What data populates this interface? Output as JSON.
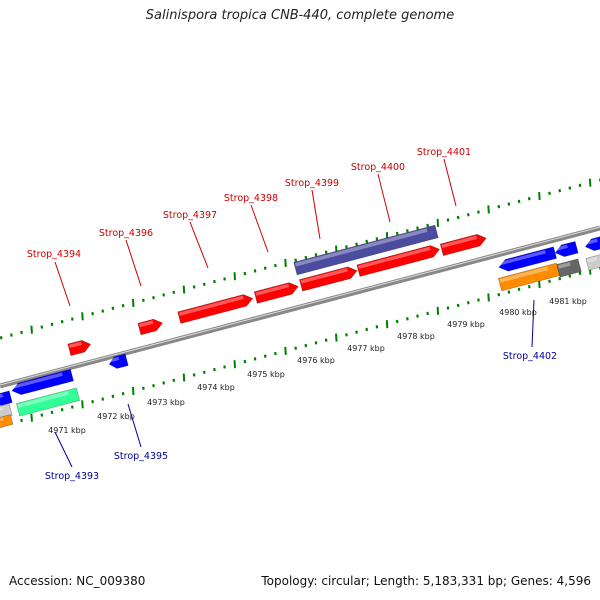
{
  "title": "Salinispora tropica CNB-440, complete genome",
  "footer": {
    "accession": "Accession: NC_009380",
    "summary": "Topology: circular; Length: 5,183,331 bp; Genes: 4,596"
  },
  "colors": {
    "forward_gene": "#ff0000",
    "reverse_gene": "#0000ff",
    "backbone": "#888888",
    "ruler": "#008000",
    "other_feature": "#4b4b9f",
    "orange_feature": "#ff8c00",
    "teal_feature": "#33ff99",
    "gray_feature": "#666666",
    "forward_label": "#cc0000",
    "reverse_label": "#000099"
  },
  "ruler": {
    "labels": [
      "4971 kbp",
      "4972 kbp",
      "4973 kbp",
      "4974 kbp",
      "4975 kbp",
      "4976 kbp",
      "4977 kbp",
      "4978 kbp",
      "4979 kbp",
      "4980 kbp",
      "4981 kbp"
    ],
    "label_positions_kbp": [
      4971,
      4972,
      4973,
      4974,
      4975,
      4976,
      4977,
      4978,
      4979,
      4980,
      4981
    ]
  },
  "genes_forward": [
    {
      "label": "Strop_4394"
    },
    {
      "label": "Strop_4396"
    },
    {
      "label": "Strop_4397"
    },
    {
      "label": "Strop_4398"
    },
    {
      "label": "Strop_4399"
    },
    {
      "label": "Strop_4400"
    },
    {
      "label": "Strop_4401"
    }
  ],
  "genes_reverse": [
    {
      "label": "Strop_4393"
    },
    {
      "label": "Strop_4395"
    },
    {
      "label": "Strop_4402"
    }
  ]
}
